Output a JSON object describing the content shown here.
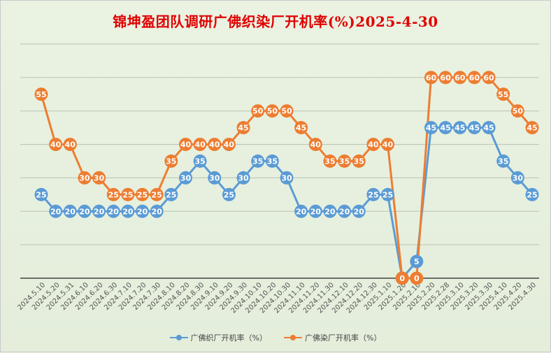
{
  "title": "锦坤盈团队调研广佛织染厂开机率(%)2025-4-30",
  "chart_data": {
    "type": "line",
    "title": "锦坤盈团队调研广佛织染厂开机率(%)2025-4-30",
    "categories": [
      "2024.5.10",
      "2024.5.20",
      "2024.5.31",
      "2024.6.10",
      "2024.6.20",
      "2024.6.30",
      "2024.7.10",
      "2024.7.20",
      "2024.7.30",
      "2024.8.10",
      "2024.8.20",
      "2024.8.30",
      "2024.9.10",
      "2024.9.20",
      "2024.9.30",
      "2024.10.10",
      "2024.10.20",
      "2024.10.30",
      "2024.11.10",
      "2024.11.20",
      "2024.11.30",
      "2024.12.10",
      "2024.12.20",
      "2024.12.30",
      "2025.1.10",
      "2025.1.20",
      "2025.2.10",
      "2025.2.20",
      "2025.2.28",
      "2025.3.10",
      "2025.3.20",
      "2025.3.30",
      "2025.4.10",
      "2025.4.20",
      "2025.4.30"
    ],
    "series": [
      {
        "name": "广佛织厂开机率（%）",
        "color": "#5b9bd5",
        "values": [
          25,
          20,
          20,
          20,
          20,
          20,
          20,
          20,
          20,
          25,
          30,
          35,
          30,
          25,
          30,
          35,
          35,
          30,
          20,
          20,
          20,
          20,
          20,
          25,
          25,
          0,
          5,
          45,
          45,
          45,
          45,
          45,
          35,
          30,
          25
        ]
      },
      {
        "name": "广佛染厂开机率（%）",
        "color": "#ed7d31",
        "values": [
          55,
          40,
          40,
          30,
          30,
          25,
          25,
          25,
          25,
          35,
          40,
          40,
          40,
          40,
          45,
          50,
          50,
          50,
          45,
          40,
          35,
          35,
          35,
          40,
          40,
          0,
          0,
          60,
          60,
          60,
          60,
          60,
          55,
          50,
          45
        ]
      }
    ],
    "ylim": [
      0,
      70
    ],
    "grid": true,
    "legend_position": "bottom"
  }
}
